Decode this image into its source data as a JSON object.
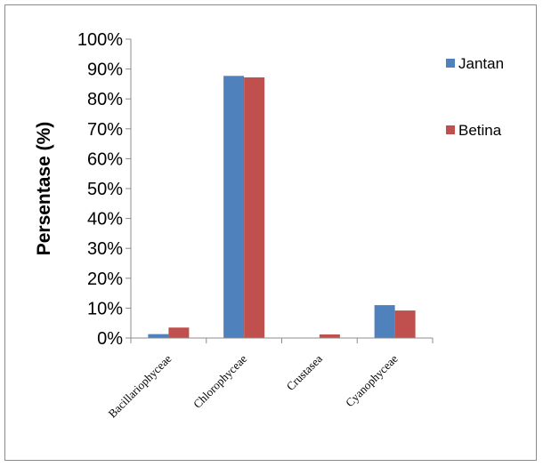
{
  "chart_data": {
    "type": "bar",
    "title": "",
    "xlabel": "",
    "ylabel": "Persentase (%)",
    "ylim": [
      0,
      100
    ],
    "y_ticks": [
      "0%",
      "10%",
      "20%",
      "30%",
      "40%",
      "50%",
      "60%",
      "70%",
      "80%",
      "90%",
      "100%"
    ],
    "y_tick_values": [
      0,
      10,
      20,
      30,
      40,
      50,
      60,
      70,
      80,
      90,
      100
    ],
    "categories": [
      "Bacillariophyceae",
      "Chlorophyceae",
      "Crustasea",
      "Cyanophyceae"
    ],
    "series": [
      {
        "name": "Jantan",
        "color": "#4f81bd",
        "values": [
          1.3,
          87.7,
          0,
          11.0
        ]
      },
      {
        "name": "Betina",
        "color": "#c0504d",
        "values": [
          3.5,
          87.2,
          1.2,
          9.2
        ]
      }
    ],
    "grid": false,
    "legend_position": "right"
  }
}
